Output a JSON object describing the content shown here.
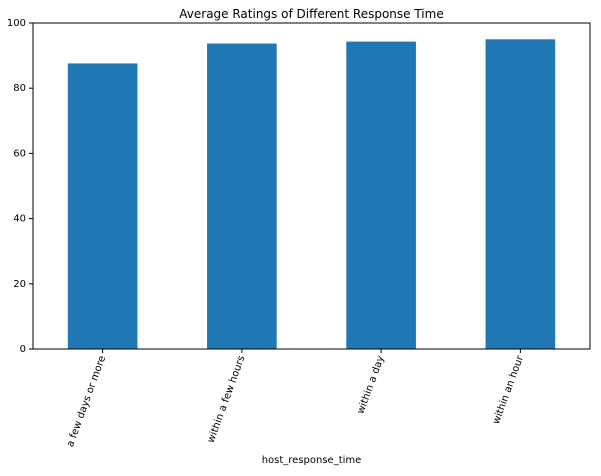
{
  "chart_data": {
    "type": "bar",
    "title": "Average Ratings of Different Response Time",
    "xlabel": "host_response_time",
    "ylabel": "",
    "categories": [
      "a few days or more",
      "within a few hours",
      "within a day",
      "within an hour"
    ],
    "values": [
      87.6,
      93.7,
      94.3,
      95.0
    ],
    "ylim": [
      0,
      100
    ],
    "yticks": [
      0,
      20,
      40,
      60,
      80,
      100
    ],
    "grid": false,
    "legend": "none",
    "bar_color": "#1f77b4"
  }
}
